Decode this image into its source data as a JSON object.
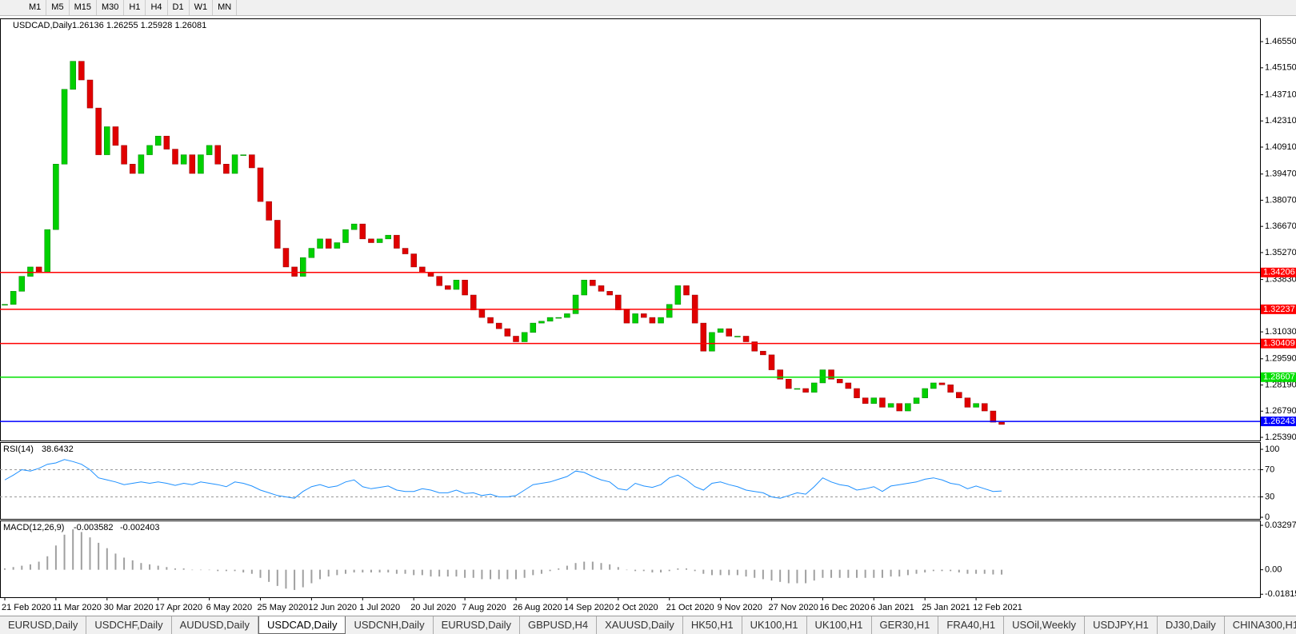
{
  "toolbar": {
    "timeframes": [
      "M1",
      "M5",
      "M15",
      "M30",
      "H1",
      "H4",
      "D1",
      "W1",
      "MN"
    ]
  },
  "chart_data": {
    "type": "candlestick",
    "symbol": "USDCAD,Daily",
    "quote": "1.26136 1.26255 1.25928 1.26081",
    "categories": [
      "21 Feb 2020",
      null,
      null,
      null,
      null,
      null,
      "11 Mar 2020",
      null,
      null,
      null,
      null,
      null,
      "30 Mar 2020",
      null,
      null,
      null,
      null,
      null,
      "17 Apr 2020",
      null,
      null,
      null,
      null,
      null,
      "6 May 2020",
      null,
      null,
      null,
      null,
      null,
      "25 May 2020",
      null,
      null,
      null,
      null,
      null,
      "12 Jun 2020",
      null,
      null,
      null,
      null,
      null,
      "1 Jul 2020",
      null,
      null,
      null,
      null,
      null,
      "20 Jul 2020",
      null,
      null,
      null,
      null,
      null,
      "7 Aug 2020",
      null,
      null,
      null,
      null,
      null,
      "26 Aug 2020",
      null,
      null,
      null,
      null,
      null,
      "14 Sep 2020",
      null,
      null,
      null,
      null,
      null,
      "2 Oct 2020",
      null,
      null,
      null,
      null,
      null,
      "21 Oct 2020",
      null,
      null,
      null,
      null,
      null,
      "9 Nov 2020",
      null,
      null,
      null,
      null,
      null,
      "27 Nov 2020",
      null,
      null,
      null,
      null,
      null,
      "16 Dec 2020",
      null,
      null,
      null,
      null,
      null,
      "6 Jan 2021",
      null,
      null,
      null,
      null,
      null,
      "25 Jan 2021",
      null,
      null,
      null,
      null,
      null,
      "12 Feb 2021",
      null,
      null,
      null
    ],
    "values": [
      1.325,
      1.332,
      1.34,
      1.345,
      1.342,
      1.365,
      1.4,
      1.44,
      1.455,
      1.445,
      1.43,
      1.405,
      1.42,
      1.41,
      1.4,
      1.395,
      1.405,
      1.41,
      1.415,
      1.408,
      1.4,
      1.405,
      1.395,
      1.405,
      1.41,
      1.4,
      1.395,
      1.405,
      1.405,
      1.398,
      1.38,
      1.37,
      1.355,
      1.345,
      1.34,
      1.35,
      1.355,
      1.36,
      1.355,
      1.358,
      1.365,
      1.368,
      1.36,
      1.358,
      1.36,
      1.362,
      1.355,
      1.352,
      1.345,
      1.342,
      1.34,
      1.335,
      1.333,
      1.338,
      1.33,
      1.322,
      1.318,
      1.315,
      1.312,
      1.308,
      1.305,
      1.31,
      1.315,
      1.316,
      1.318,
      1.318,
      1.32,
      1.33,
      1.338,
      1.335,
      1.332,
      1.33,
      1.322,
      1.315,
      1.32,
      1.318,
      1.315,
      1.318,
      1.325,
      1.335,
      1.33,
      1.315,
      1.3,
      1.31,
      1.312,
      1.308,
      1.308,
      1.305,
      1.3,
      1.298,
      1.29,
      1.285,
      1.28,
      1.28,
      1.278,
      1.283,
      1.29,
      1.285,
      1.283,
      1.28,
      1.275,
      1.272,
      1.275,
      1.27,
      1.272,
      1.268,
      1.272,
      1.275,
      1.28,
      1.283,
      1.282,
      1.278,
      1.275,
      1.27,
      1.272,
      1.268,
      1.262,
      1.2608
    ],
    "up_color": "#00d000",
    "down_color": "#e00000",
    "ylim": [
      1.2522,
      1.4775
    ],
    "yticks": [
      {
        "value": 1.4655,
        "label": "1.46550"
      },
      {
        "value": 1.4515,
        "label": "1.45150"
      },
      {
        "value": 1.4371,
        "label": "1.43710"
      },
      {
        "value": 1.4231,
        "label": "1.42310"
      },
      {
        "value": 1.4091,
        "label": "1.40910"
      },
      {
        "value": 1.3947,
        "label": "1.39470"
      },
      {
        "value": 1.3807,
        "label": "1.38070"
      },
      {
        "value": 1.3667,
        "label": "1.36670"
      },
      {
        "value": 1.3527,
        "label": "1.35270"
      },
      {
        "value": 1.3383,
        "label": "1.33830"
      },
      {
        "value": 1.3103,
        "label": "1.31030"
      },
      {
        "value": 1.2959,
        "label": "1.29590"
      },
      {
        "value": 1.2819,
        "label": "1.28190"
      },
      {
        "value": 1.2679,
        "label": "1.26790"
      },
      {
        "value": 1.2539,
        "label": "1.25390"
      }
    ],
    "levels": [
      {
        "value": 1.34206,
        "color": "#ff0000"
      },
      {
        "value": 1.32237,
        "color": "#ff0000"
      },
      {
        "value": 1.30409,
        "color": "#ff0000"
      },
      {
        "value": 1.28607,
        "color": "#00e000"
      },
      {
        "value": 1.26243,
        "color": "#0000ff"
      }
    ]
  },
  "rsi": {
    "type": "line",
    "name": "RSI(14)",
    "current": 38.6432,
    "color": "#1e90ff",
    "ylim": [
      0,
      100
    ],
    "yticks": [
      100,
      70,
      30,
      0
    ],
    "levels": [
      70,
      30
    ],
    "values": [
      55,
      62,
      70,
      68,
      72,
      78,
      80,
      85,
      82,
      78,
      70,
      58,
      55,
      52,
      48,
      50,
      52,
      50,
      52,
      50,
      47,
      50,
      48,
      52,
      50,
      48,
      45,
      52,
      50,
      46,
      40,
      36,
      32,
      30,
      28,
      38,
      45,
      48,
      44,
      46,
      52,
      55,
      45,
      42,
      44,
      46,
      40,
      38,
      38,
      42,
      40,
      36,
      36,
      40,
      35,
      36,
      32,
      34,
      30,
      30,
      32,
      40,
      48,
      50,
      52,
      56,
      60,
      68,
      66,
      60,
      55,
      52,
      42,
      40,
      50,
      46,
      44,
      48,
      58,
      62,
      55,
      45,
      40,
      50,
      52,
      48,
      45,
      40,
      38,
      36,
      30,
      28,
      32,
      36,
      34,
      45,
      58,
      52,
      48,
      46,
      40,
      42,
      45,
      38,
      46,
      48,
      50,
      52,
      56,
      58,
      55,
      50,
      48,
      42,
      46,
      42,
      38,
      38.6432
    ]
  },
  "macd": {
    "type": "bar",
    "name": "MACD(12,26,9)",
    "current": [
      -0.003582,
      -0.002403
    ],
    "color": "#a0a0a0",
    "ylim": [
      -0.02038,
      0.03597
    ],
    "yticks": [
      0.032972,
      {
        "value": 0,
        "label": "0.00"
      },
      -0.018154
    ],
    "values": [
      0.001,
      0.002,
      0.003,
      0.004,
      0.006,
      0.01,
      0.018,
      0.026,
      0.03,
      0.028,
      0.024,
      0.02,
      0.016,
      0.012,
      0.009,
      0.007,
      0.005,
      0.004,
      0.003,
      0.002,
      0.001,
      0.001,
      0.0,
      0.0,
      0.0,
      -0.001,
      -0.001,
      -0.001,
      -0.002,
      -0.003,
      -0.006,
      -0.009,
      -0.012,
      -0.014,
      -0.015,
      -0.013,
      -0.01,
      -0.007,
      -0.005,
      -0.004,
      -0.003,
      -0.002,
      -0.002,
      -0.002,
      -0.002,
      -0.002,
      -0.003,
      -0.003,
      -0.004,
      -0.004,
      -0.005,
      -0.005,
      -0.005,
      -0.005,
      -0.006,
      -0.006,
      -0.007,
      -0.007,
      -0.007,
      -0.007,
      -0.007,
      -0.006,
      -0.004,
      -0.003,
      -0.001,
      0.001,
      0.003,
      0.005,
      0.006,
      0.006,
      0.005,
      0.004,
      0.002,
      0.0,
      -0.001,
      -0.001,
      -0.002,
      -0.002,
      -0.001,
      0.001,
      0.001,
      -0.001,
      -0.003,
      -0.004,
      -0.004,
      -0.004,
      -0.004,
      -0.005,
      -0.006,
      -0.007,
      -0.008,
      -0.009,
      -0.01,
      -0.01,
      -0.01,
      -0.008,
      -0.006,
      -0.006,
      -0.006,
      -0.006,
      -0.006,
      -0.006,
      -0.006,
      -0.006,
      -0.005,
      -0.005,
      -0.004,
      -0.003,
      -0.002,
      -0.001,
      -0.001,
      -0.001,
      -0.002,
      -0.003,
      -0.003,
      -0.003,
      -0.0035,
      -0.003582
    ]
  },
  "tabs": [
    {
      "label": "EURUSD,Daily",
      "active": false
    },
    {
      "label": "USDCHF,Daily",
      "active": false
    },
    {
      "label": "AUDUSD,Daily",
      "active": false
    },
    {
      "label": "USDCAD,Daily",
      "active": true
    },
    {
      "label": "USDCNH,Daily",
      "active": false
    },
    {
      "label": "EURUSD,Daily",
      "active": false
    },
    {
      "label": "GBPUSD,H4",
      "active": false
    },
    {
      "label": "XAUUSD,Daily",
      "active": false
    },
    {
      "label": "HK50,H1",
      "active": false
    },
    {
      "label": "UK100,H1",
      "active": false
    },
    {
      "label": "UK100,H1",
      "active": false
    },
    {
      "label": "GER30,H1",
      "active": false
    },
    {
      "label": "FRA40,H1",
      "active": false
    },
    {
      "label": "USOil,Weekly",
      "active": false
    },
    {
      "label": "USDJPY,H1",
      "active": false
    },
    {
      "label": "DJ30,Daily",
      "active": false
    },
    {
      "label": "CHINA300,H1",
      "active": false
    }
  ]
}
